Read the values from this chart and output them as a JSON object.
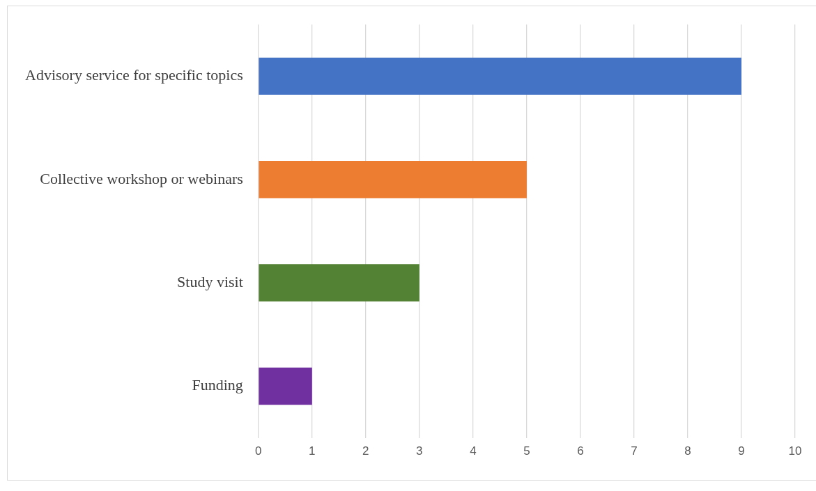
{
  "chart_data": {
    "type": "bar",
    "orientation": "horizontal",
    "categories": [
      "Advisory service for specific topics",
      "Collective workshop or webinars",
      "Study visit",
      "Funding"
    ],
    "values": [
      9,
      5,
      3,
      1
    ],
    "colors": [
      "#4472c4",
      "#ed7d31",
      "#548235",
      "#7030a0"
    ],
    "xlim": [
      0,
      10
    ],
    "xticks": [
      0,
      1,
      2,
      3,
      4,
      5,
      6,
      7,
      8,
      9,
      10
    ],
    "grid": "x",
    "legend": false
  }
}
